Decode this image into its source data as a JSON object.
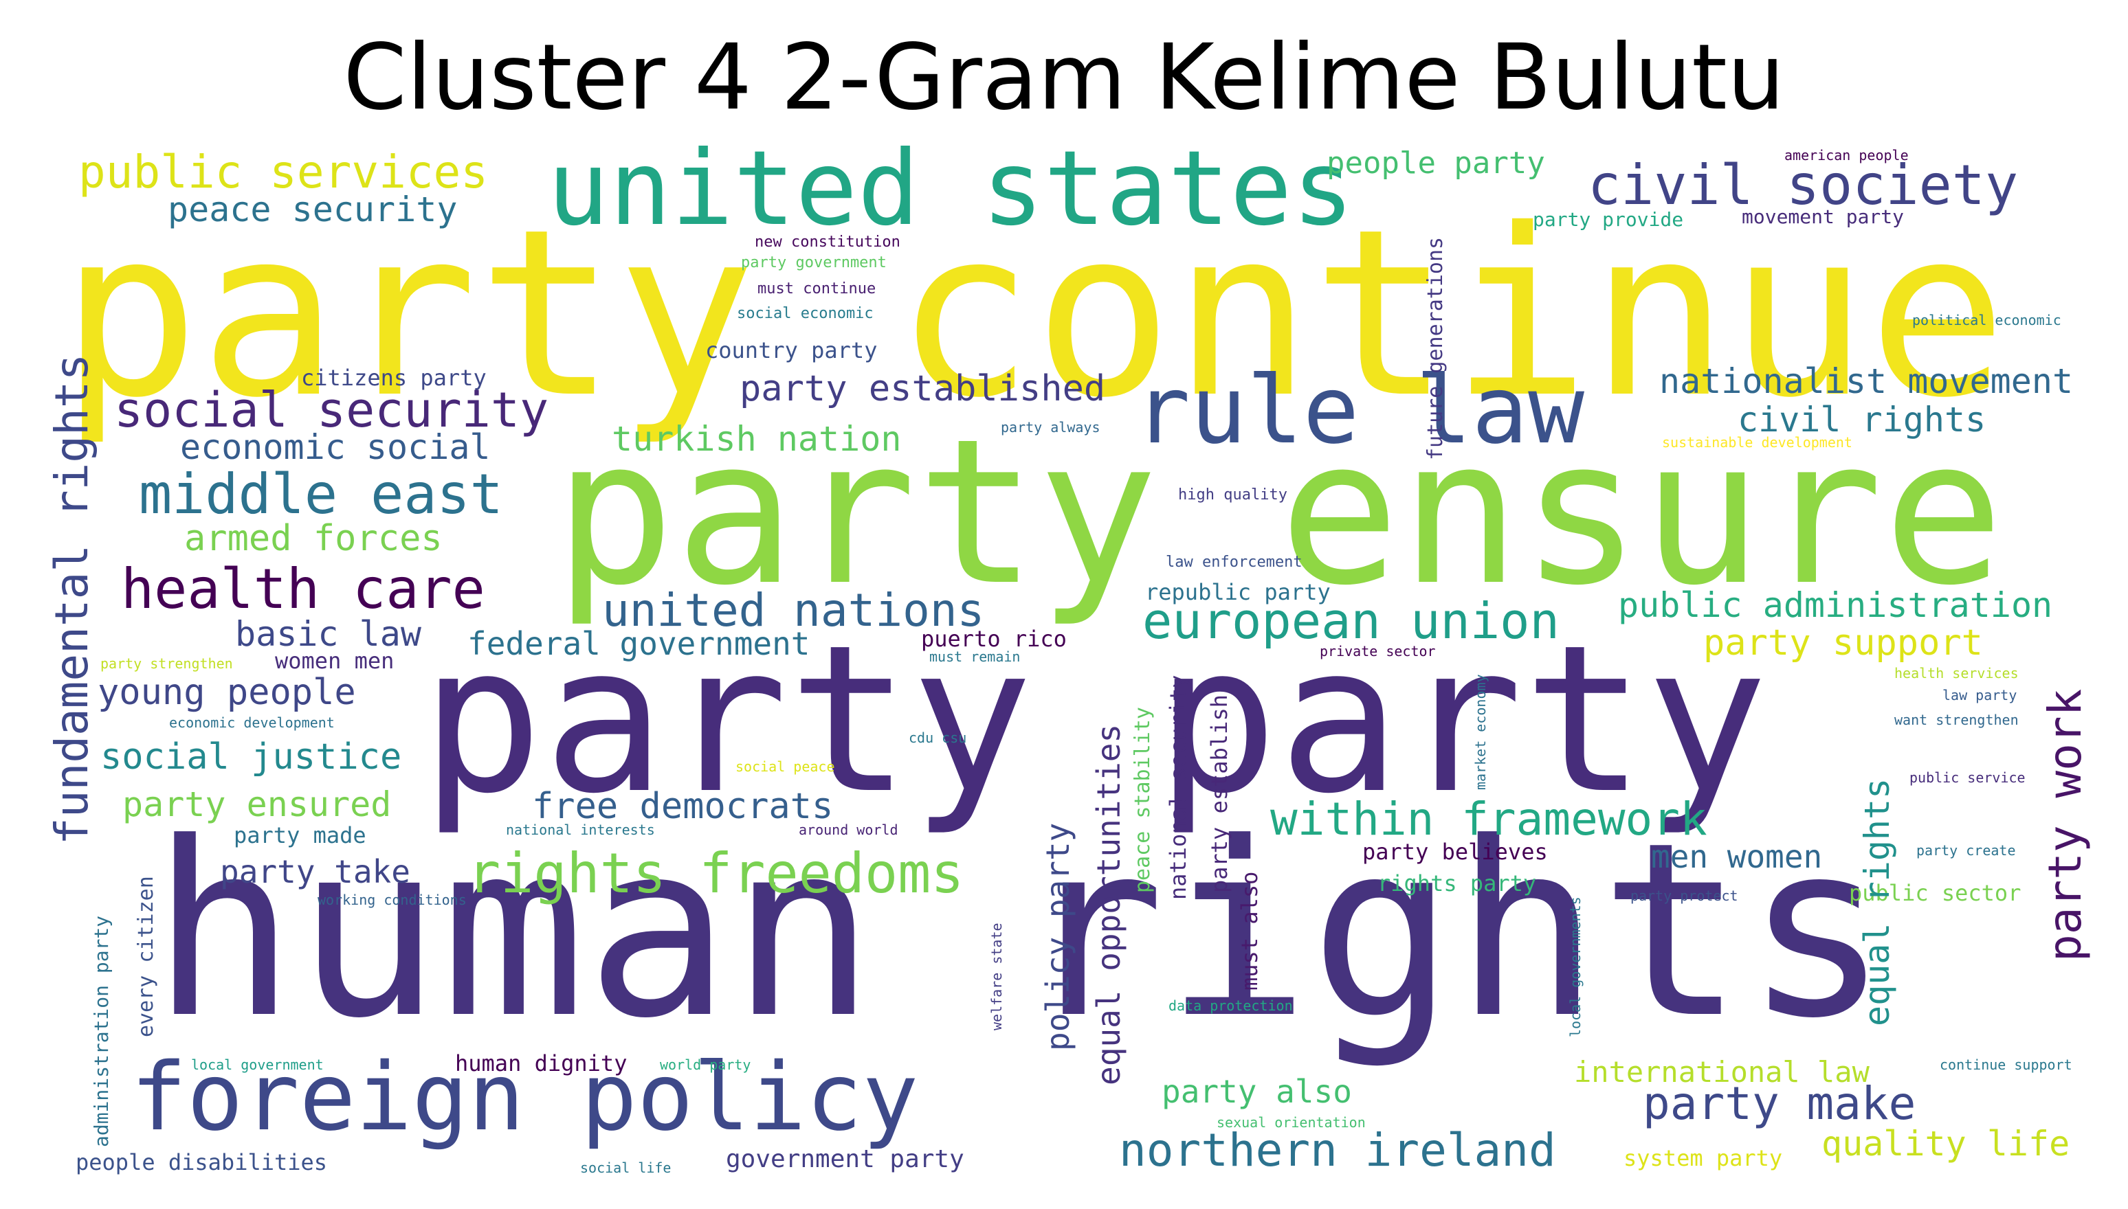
{
  "title": "Cluster 4 2-Gram Kelime Bulutu",
  "palette": "viridis",
  "words": [
    {
      "text": "party continue",
      "color": "#f2e51d"
    },
    {
      "text": "party ensure",
      "color": "#8fd744"
    },
    {
      "text": "party party",
      "color": "#472d7b"
    },
    {
      "text": "human rights",
      "color": "#46337e"
    },
    {
      "text": "united states",
      "color": "#21a685"
    },
    {
      "text": "rule law",
      "color": "#3b528b"
    },
    {
      "text": "foreign policy",
      "color": "#3e4989"
    },
    {
      "text": "civil society",
      "color": "#414487"
    },
    {
      "text": "public services",
      "color": "#dde318"
    },
    {
      "text": "peace security",
      "color": "#2c728e"
    },
    {
      "text": "people party",
      "color": "#44bf70"
    },
    {
      "text": "american people",
      "color": "#440154"
    },
    {
      "text": "party provide",
      "color": "#22a884"
    },
    {
      "text": "movement party",
      "color": "#472c7a"
    },
    {
      "text": "new constitution",
      "color": "#46085c"
    },
    {
      "text": "party government",
      "color": "#5ec962"
    },
    {
      "text": "must continue",
      "color": "#481f70"
    },
    {
      "text": "social economic",
      "color": "#287c8e"
    },
    {
      "text": "political economic",
      "color": "#2a788e"
    },
    {
      "text": "country party",
      "color": "#3b528b"
    },
    {
      "text": "citizens party",
      "color": "#3e4989"
    },
    {
      "text": "social security",
      "color": "#482878"
    },
    {
      "text": "party established",
      "color": "#433e85"
    },
    {
      "text": "nationalist movement",
      "color": "#31688e"
    },
    {
      "text": "economic social",
      "color": "#365c8d"
    },
    {
      "text": "turkish nation",
      "color": "#5ec962"
    },
    {
      "text": "civil rights",
      "color": "#2a788e"
    },
    {
      "text": "party always",
      "color": "#31688e"
    },
    {
      "text": "sustainable development",
      "color": "#fde725"
    },
    {
      "text": "middle east",
      "color": "#2c728e"
    },
    {
      "text": "armed forces",
      "color": "#7ad151"
    },
    {
      "text": "high quality",
      "color": "#433e85"
    },
    {
      "text": "health care",
      "color": "#440154"
    },
    {
      "text": "law enforcement",
      "color": "#3b528b"
    },
    {
      "text": "republic party",
      "color": "#2c728e"
    },
    {
      "text": "united nations",
      "color": "#33638d"
    },
    {
      "text": "european union",
      "color": "#1f9e89"
    },
    {
      "text": "public administration",
      "color": "#27ad81"
    },
    {
      "text": "basic law",
      "color": "#3e4989"
    },
    {
      "text": "federal government",
      "color": "#2c728e"
    },
    {
      "text": "puerto rico",
      "color": "#440154"
    },
    {
      "text": "must remain",
      "color": "#2a788e"
    },
    {
      "text": "private sector",
      "color": "#440154"
    },
    {
      "text": "party support",
      "color": "#dde318"
    },
    {
      "text": "women men",
      "color": "#472d7b"
    },
    {
      "text": "party strengthen",
      "color": "#c2df23"
    },
    {
      "text": "health services",
      "color": "#b5de2b"
    },
    {
      "text": "young people",
      "color": "#3f4788"
    },
    {
      "text": "law party",
      "color": "#365c8d"
    },
    {
      "text": "economic development",
      "color": "#2c728e"
    },
    {
      "text": "want strengthen",
      "color": "#31688e"
    },
    {
      "text": "cdu csu",
      "color": "#2a788e"
    },
    {
      "text": "social justice",
      "color": "#23898e"
    },
    {
      "text": "social peace",
      "color": "#dde318"
    },
    {
      "text": "public service",
      "color": "#472d7b"
    },
    {
      "text": "party ensured",
      "color": "#7ad151"
    },
    {
      "text": "free democrats",
      "color": "#355f8d"
    },
    {
      "text": "within framework",
      "color": "#22a884"
    },
    {
      "text": "party made",
      "color": "#2c728e"
    },
    {
      "text": "national interests",
      "color": "#2a788e"
    },
    {
      "text": "around world",
      "color": "#482475"
    },
    {
      "text": "party believes",
      "color": "#440154"
    },
    {
      "text": "party create",
      "color": "#2c728e"
    },
    {
      "text": "men women",
      "color": "#31688e"
    },
    {
      "text": "rights freedoms",
      "color": "#7ad151"
    },
    {
      "text": "party take",
      "color": "#404688"
    },
    {
      "text": "rights party",
      "color": "#35b779"
    },
    {
      "text": "party protect",
      "color": "#3b528b"
    },
    {
      "text": "public sector",
      "color": "#7ad151"
    },
    {
      "text": "working conditions",
      "color": "#33638d"
    },
    {
      "text": "data protection",
      "color": "#22a884"
    },
    {
      "text": "human dignity",
      "color": "#440154"
    },
    {
      "text": "local government",
      "color": "#1f9e89"
    },
    {
      "text": "world party",
      "color": "#27ad81"
    },
    {
      "text": "international law",
      "color": "#b5de2b"
    },
    {
      "text": "continue support",
      "color": "#2a788e"
    },
    {
      "text": "party also",
      "color": "#44bf70"
    },
    {
      "text": "party make",
      "color": "#3e4989"
    },
    {
      "text": "sexual orientation",
      "color": "#44bf70"
    },
    {
      "text": "quality life",
      "color": "#c8e020"
    },
    {
      "text": "northern ireland",
      "color": "#2c728e"
    },
    {
      "text": "people disabilities",
      "color": "#3b528b"
    },
    {
      "text": "social life",
      "color": "#2a788e"
    },
    {
      "text": "government party",
      "color": "#433e85"
    },
    {
      "text": "system party",
      "color": "#dde318"
    },
    {
      "text": "future generations",
      "color": "#443983"
    },
    {
      "text": "fundamental rights",
      "color": "#3e4989"
    },
    {
      "text": "administration party",
      "color": "#2c728e"
    },
    {
      "text": "every citizen",
      "color": "#3b528b"
    },
    {
      "text": "welfare state",
      "color": "#433e85"
    },
    {
      "text": "policy party",
      "color": "#3e4989"
    },
    {
      "text": "equal opportunities",
      "color": "#46337e"
    },
    {
      "text": "peace stability",
      "color": "#5ec962"
    },
    {
      "text": "national security",
      "color": "#472d7b"
    },
    {
      "text": "party establish",
      "color": "#482878"
    },
    {
      "text": "must also",
      "color": "#481a6c"
    },
    {
      "text": "market economy",
      "color": "#2c728e"
    },
    {
      "text": "local governments",
      "color": "#2a788e"
    },
    {
      "text": "equal rights",
      "color": "#21918c"
    },
    {
      "text": "party work",
      "color": "#481467"
    }
  ]
}
